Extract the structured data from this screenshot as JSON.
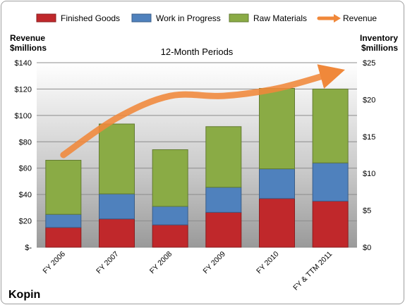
{
  "chart_data": {
    "type": "bar",
    "stacked": true,
    "title": "12-Month Periods",
    "company": "Kopin",
    "categories": [
      "FY 2006",
      "FY 2007",
      "FY 2008",
      "FY 2009",
      "FY 2010",
      "FY & TTM 2011"
    ],
    "series": [
      {
        "name": "Finished Goods",
        "axis": "left",
        "color": "#c0282b",
        "values": [
          15,
          21.5,
          17,
          26.5,
          37,
          35
        ]
      },
      {
        "name": "Work in Progress",
        "axis": "left",
        "color": "#4f81bd",
        "values": [
          10,
          19,
          14,
          19,
          22.5,
          29
        ]
      },
      {
        "name": "Raw Materials",
        "axis": "left",
        "color": "#8aab45",
        "values": [
          41,
          53,
          43,
          46,
          61,
          56
        ]
      },
      {
        "name": "Revenue",
        "axis": "right",
        "type": "line",
        "color": "#f0883a",
        "values": [
          12.5,
          17.5,
          20.5,
          20.5,
          21.5,
          23.5
        ]
      }
    ],
    "y_left": {
      "label_line1": "Revenue",
      "label_line2": "$millions",
      "min": 0,
      "max": 140,
      "step": 20,
      "ticks": [
        "$-",
        "$20",
        "$40",
        "$60",
        "$80",
        "$100",
        "$120",
        "$140"
      ]
    },
    "y_right": {
      "label_line1": "Inventory",
      "label_line2": "$millions",
      "min": 0,
      "max": 25,
      "step": 5,
      "ticks": [
        "$0",
        "$5",
        "$10",
        "$15",
        "$20",
        "$25"
      ]
    },
    "grid": true,
    "legend_position": "top"
  }
}
